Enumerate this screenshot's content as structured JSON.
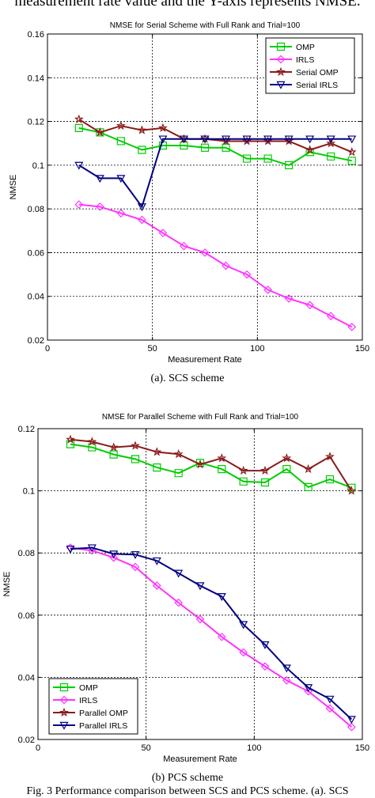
{
  "page": {
    "top_text": "measurement rate value and the Y-axis represents NMSE.",
    "bottom_text": "Fig. 3 Performance comparison between SCS and PCS scheme. (a). SCS"
  },
  "chart_data": [
    {
      "type": "line",
      "title": "NMSE for Serial Scheme with Full Rank and Trial=100",
      "caption": "(a). SCS scheme",
      "xlabel": "Measurement Rate",
      "ylabel": "NMSE",
      "xlim": [
        0,
        150
      ],
      "ylim": [
        0.02,
        0.16
      ],
      "xticks": [
        0,
        50,
        100,
        150
      ],
      "yticks": [
        0.02,
        0.04,
        0.06,
        0.08,
        0.1,
        0.12,
        0.14,
        0.16
      ],
      "ytick_labels": [
        "0.02",
        "0.04",
        "0.06",
        "0.08",
        "0.1",
        "0.12",
        "0.14",
        "0.16"
      ],
      "grid": true,
      "legend_position": "top-right",
      "x": [
        15,
        25,
        35,
        45,
        55,
        65,
        75,
        85,
        95,
        105,
        115,
        125,
        135,
        145
      ],
      "series": [
        {
          "name": "OMP",
          "color": "#00cc00",
          "marker": "square",
          "values": [
            0.117,
            0.115,
            0.111,
            0.107,
            0.109,
            0.109,
            0.108,
            0.108,
            0.103,
            0.103,
            0.1,
            0.106,
            0.104,
            0.102
          ]
        },
        {
          "name": "IRLS",
          "color": "#ff33ff",
          "marker": "diamond",
          "values": [
            0.082,
            0.081,
            0.078,
            0.075,
            0.069,
            0.063,
            0.06,
            0.054,
            0.05,
            0.043,
            0.039,
            0.036,
            0.031,
            0.026
          ]
        },
        {
          "name": "Serial OMP",
          "color": "#8b1a1a",
          "marker": "star",
          "values": [
            0.121,
            0.115,
            0.118,
            0.116,
            0.117,
            0.112,
            0.112,
            0.111,
            0.111,
            0.111,
            0.111,
            0.107,
            0.11,
            0.106
          ]
        },
        {
          "name": "Serial IRLS",
          "color": "#000080",
          "marker": "triangle-down",
          "values": [
            0.1,
            0.094,
            0.094,
            0.081,
            0.112,
            0.112,
            0.112,
            0.112,
            0.112,
            0.112,
            0.112,
            0.112,
            0.112,
            0.112
          ]
        }
      ]
    },
    {
      "type": "line",
      "title": "NMSE for Parallel Scheme with Full Rank and Trial=100",
      "caption": "(b) PCS scheme",
      "xlabel": "Measurement Rate",
      "ylabel": "NMSE",
      "xlim": [
        0,
        150
      ],
      "ylim": [
        0.02,
        0.12
      ],
      "xticks": [
        0,
        50,
        100,
        150
      ],
      "yticks": [
        0.02,
        0.04,
        0.06,
        0.08,
        0.1,
        0.12
      ],
      "ytick_labels": [
        "0.02",
        "0.04",
        "0.06",
        "0.08",
        "0.1",
        "0.12"
      ],
      "grid": true,
      "legend_position": "bottom-left",
      "x": [
        15,
        25,
        35,
        45,
        55,
        65,
        75,
        85,
        95,
        105,
        115,
        125,
        135,
        145
      ],
      "series": [
        {
          "name": "OMP",
          "color": "#00cc00",
          "marker": "square",
          "values": [
            0.115,
            0.114,
            0.1117,
            0.1102,
            0.1075,
            0.1057,
            0.109,
            0.107,
            0.103,
            0.1027,
            0.107,
            0.1012,
            0.1037,
            0.101
          ]
        },
        {
          "name": "IRLS",
          "color": "#ff33ff",
          "marker": "diamond",
          "values": [
            0.0817,
            0.0808,
            0.0785,
            0.0755,
            0.0695,
            0.064,
            0.0587,
            0.053,
            0.048,
            0.0435,
            0.039,
            0.0355,
            0.03,
            0.024
          ]
        },
        {
          "name": "Parallel OMP",
          "color": "#8b1a1a",
          "marker": "star",
          "values": [
            0.1165,
            0.1158,
            0.114,
            0.1145,
            0.1125,
            0.1118,
            0.1085,
            0.1105,
            0.1065,
            0.1065,
            0.1105,
            0.107,
            0.111,
            0.1
          ]
        },
        {
          "name": "Parallel IRLS",
          "color": "#000080",
          "marker": "triangle-down",
          "values": [
            0.0813,
            0.0817,
            0.0797,
            0.0795,
            0.0775,
            0.0735,
            0.0695,
            0.066,
            0.057,
            0.0505,
            0.043,
            0.0367,
            0.033,
            0.0265
          ]
        }
      ]
    }
  ]
}
